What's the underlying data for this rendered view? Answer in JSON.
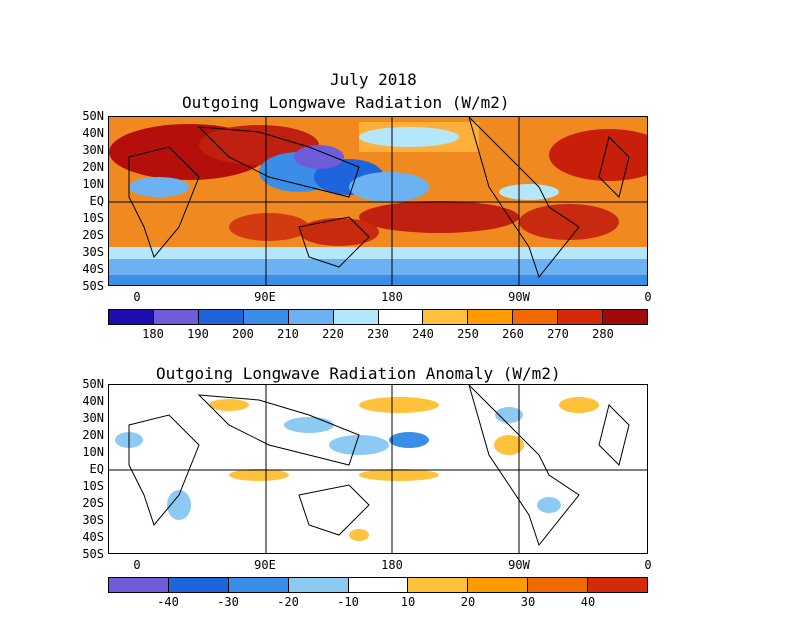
{
  "top": {
    "title1": "July 2018",
    "title2": "Outgoing Longwave Radiation (W/m2)",
    "colorbar": {
      "labels": [
        "180",
        "190",
        "200",
        "210",
        "220",
        "230",
        "240",
        "250",
        "260",
        "270",
        "280"
      ],
      "colors": [
        "#1e0eaf",
        "#6e5cd9",
        "#1e64dc",
        "#3a8ee8",
        "#6cb2f2",
        "#b4e6fc",
        "#ffffff",
        "#ffc23a",
        "#ff9a00",
        "#f06a00",
        "#d42a0a",
        "#a00a0a"
      ]
    }
  },
  "bottom": {
    "title": "Outgoing Longwave Radiation Anomaly (W/m2)",
    "colorbar": {
      "labels": [
        "-40",
        "-30",
        "-20",
        "-10",
        "10",
        "20",
        "30",
        "40"
      ],
      "colors": [
        "#6e5cd9",
        "#1e64dc",
        "#3a8ee8",
        "#8ccaf4",
        "#ffffff",
        "#ffc23a",
        "#ff9a00",
        "#f06a00",
        "#d42a0a"
      ]
    }
  },
  "axes": {
    "lat": [
      "50N",
      "40N",
      "30N",
      "20N",
      "10N",
      "EQ",
      "10S",
      "20S",
      "30S",
      "40S",
      "50S"
    ],
    "lon": [
      "0",
      "90E",
      "180",
      "90W",
      "0"
    ]
  }
}
